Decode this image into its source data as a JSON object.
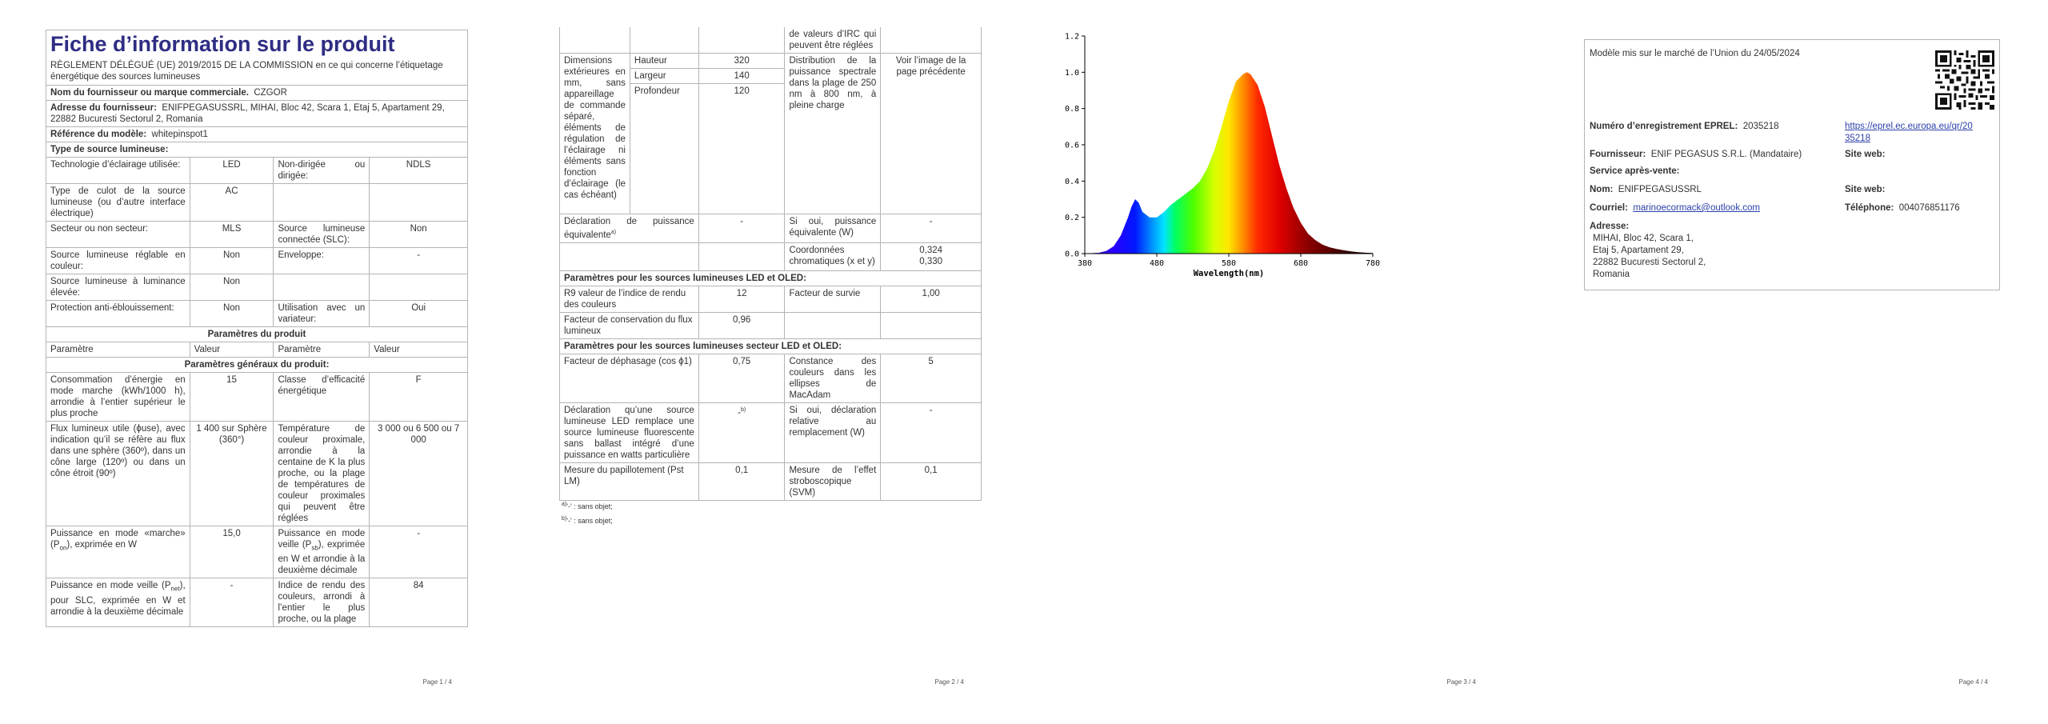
{
  "page1": {
    "title": "Fiche d’information sur le produit",
    "regulation": "RÈGLEMENT DÉLÉGUÉ (UE) 2019/2015 DE LA COMMISSION en ce qui concerne l’étiquetage énergétique des sources lumineuses",
    "supplier_name_label": "Nom du fournisseur ou marque commerciale.",
    "supplier_name": "CZGOR",
    "supplier_address_label": "Adresse du fournisseur:",
    "supplier_address": "ENIFPEGASUSSRL, MIHAI, Bloc 42, Scara 1, Etaj 5, Apartament 29, 22882 Bucuresti Sectorul 2, Romania",
    "model_label": "Référence du modèle:",
    "model": "whitepinspot1",
    "source_type_label": "Type de source lumineuse:",
    "rows": [
      [
        "Technologie d’éclairage utilisée:",
        "LED",
        "Non-dirigée ou dirigée:",
        "NDLS"
      ],
      [
        "Type de culot de la source lumineuse (ou d’autre interface électrique)",
        "AC",
        "",
        ""
      ],
      [
        "Secteur ou non secteur:",
        "MLS",
        "Source lumineuse connectée (SLC):",
        "Non"
      ],
      [
        "Source lumineuse réglable en couleur:",
        "Non",
        "Enveloppe:",
        "-"
      ],
      [
        "Source lumineuse à luminance élevée:",
        "Non",
        "",
        ""
      ],
      [
        "Protection anti-éblouissement:",
        "Non",
        "Utilisation avec un variateur:",
        "Oui"
      ]
    ],
    "product_params_header": "Paramètres du produit",
    "col_param": "Paramètre",
    "col_value": "Valeur",
    "general_params_header": "Paramètres généraux du produit:",
    "general_rows": [
      [
        "Consommation d’énergie en mode marche (kWh/1000 h), arrondie à l’entier supérieur le plus proche",
        "15",
        "Classe d’efficacité énergétique",
        "F"
      ],
      [
        "Flux lumineux utile (ϕuse), avec indication qu’il se réfère au flux dans une sphère (360º), dans un cône large (120º) ou dans un cône étroit (90º)",
        "1 400 sur Sphère (360°)",
        "Température de couleur proximale, arrondie à la centaine de K la plus proche, ou la plage de températures de couleur proximales qui peuvent être réglées",
        "3 000 ou 6 500 ou 7 000"
      ],
      [
        "Puissance en mode «marche» (P",
        "15,0",
        "Puissance en mode veille (P",
        "-"
      ],
      [
        "Puissance en mode veille (P",
        "-",
        "Indice de rendu des couleurs, arrondi à l’entier le plus proche, ou la plage",
        "84"
      ]
    ],
    "on_sub": "on",
    "on_suffix": "), exprimée en W",
    "sb_sub": "sb",
    "sb_suffix": "), exprimée en W et arrondie à la deuxième décimale",
    "net_sub": "net",
    "net_suffix": "), pour SLC, exprimée en W et arrondie à la deuxième décimale",
    "page_number": "Page 1 / 4"
  },
  "page2": {
    "cri_cont": "de valeurs d’IRC qui peuvent être réglées",
    "dims_label": "Dimensions extérieures en mm, sans appareillage de commande séparé, éléments de régulation de l’éclairage ni éléments sans fonction d’éclairage (le cas échéant)",
    "dims": [
      {
        "name": "Hauteur",
        "value": "320"
      },
      {
        "name": "Largeur",
        "value": "140"
      },
      {
        "name": "Profondeur",
        "value": "120"
      }
    ],
    "spectral_label": "Distribution de la puissance spectrale dans la plage de 250 nm à 800 nm, à pleine charge",
    "spectral_value": "Voir l’image de la page précédente",
    "equiv_label": "Déclaration de puissance équivalente",
    "equiv_sup": "a)",
    "equiv_value": "-",
    "equiv_watt_label": "Si oui, puissance équivalente (W)",
    "equiv_watt_value": "-",
    "chroma_label": "Coordonnées chromatiques (x et y)",
    "chroma_value": "0,324\n0,330",
    "led_header": "Paramètres pour les sources lumineuses LED et OLED:",
    "r9_label": "R9 valeur de l’indice de rendu des couleurs",
    "r9_value": "12",
    "survival_label": "Facteur de survie",
    "survival_value": "1,00",
    "flux_label": "Facteur de conservation du flux lumineux",
    "flux_value": "0,96",
    "mains_header": "Paramètres pour les sources lumineuses secteur LED et OLED:",
    "phase_label": "Facteur de déphasage (cos ϕ1)",
    "phase_value": "0,75",
    "macadam_label": "Constance des couleurs dans les ellipses de MacAdam",
    "macadam_value": "5",
    "replace_label": "Déclaration qu’une source lumineuse LED remplace une source lumineuse fluorescente sans ballast intégré d’une puissance en watts particulière",
    "replace_value": "-",
    "replace_sup": "b)",
    "replace_watt_label": "Si oui, déclaration relative au remplacement (W)",
    "replace_watt_value": "-",
    "flicker_label": "Mesure du papillotement (Pst LM)",
    "flicker_value": "0,1",
    "strobe_label": "Mesure de l’effet stroboscopique (SVM)",
    "strobe_value": "0,1",
    "fn_a": "a)",
    "fn_b": "b)",
    "fn_text": "'-' : sans objet;",
    "page_number": "Page 2 / 4"
  },
  "page3": {
    "page_number": "Page 3 / 4"
  },
  "page4": {
    "market_date": "Modèle mis sur le marché de l’Union du 24/05/2024",
    "eprel_label": "Numéro d’enregistrement EPREL:",
    "eprel_value": "2035218",
    "eprel_link_1": "https://eprel.ec.europa.eu/qr/20",
    "eprel_link_2": "35218",
    "supplier_label": "Fournisseur:",
    "supplier_value": "ENIF PEGASUS S.R.L. (Mandataire)",
    "website_label": "Site web:",
    "after_sales_label": "Service après-vente:",
    "name_label": "Nom:",
    "name_value": "ENIFPEGASUSSRL",
    "website_label_2": "Site web:",
    "email_label": "Courriel:",
    "email_value": "marinoecormack@outlook.com",
    "phone_label": "Téléphone:",
    "phone_value": "004076851176",
    "address_label": "Adresse:",
    "address_lines": [
      "MIHAI, Bloc 42, Scara 1,",
      "Etaj 5, Apartament 29,",
      "22882 Bucuresti Sectorul 2,",
      "Romania"
    ],
    "page_number": "Page 4 / 4"
  },
  "chart_data": {
    "type": "area",
    "xlabel": "Wavelength(nm)",
    "ylabel": "",
    "xlim": [
      380,
      780
    ],
    "ylim": [
      0,
      1.2
    ],
    "xticks": [
      380,
      480,
      580,
      680,
      780
    ],
    "yticks": [
      "0.0",
      "0.2",
      "0.4",
      "0.6",
      "0.8",
      "1.0",
      "1.2"
    ],
    "grid": false,
    "fill": "spectrum-rainbow",
    "x": [
      380,
      400,
      410,
      420,
      430,
      440,
      445,
      450,
      455,
      460,
      470,
      480,
      490,
      500,
      510,
      520,
      530,
      540,
      550,
      560,
      570,
      580,
      590,
      600,
      605,
      610,
      620,
      630,
      640,
      650,
      660,
      670,
      680,
      690,
      700,
      710,
      720,
      730,
      740,
      750,
      760,
      770,
      780
    ],
    "values": [
      0,
      0.005,
      0.015,
      0.04,
      0.1,
      0.2,
      0.26,
      0.3,
      0.28,
      0.23,
      0.2,
      0.2,
      0.23,
      0.27,
      0.3,
      0.33,
      0.36,
      0.4,
      0.47,
      0.57,
      0.7,
      0.84,
      0.95,
      0.99,
      1.0,
      0.99,
      0.93,
      0.81,
      0.65,
      0.49,
      0.36,
      0.25,
      0.17,
      0.11,
      0.075,
      0.05,
      0.035,
      0.025,
      0.018,
      0.012,
      0.008,
      0.005,
      0.003
    ]
  }
}
